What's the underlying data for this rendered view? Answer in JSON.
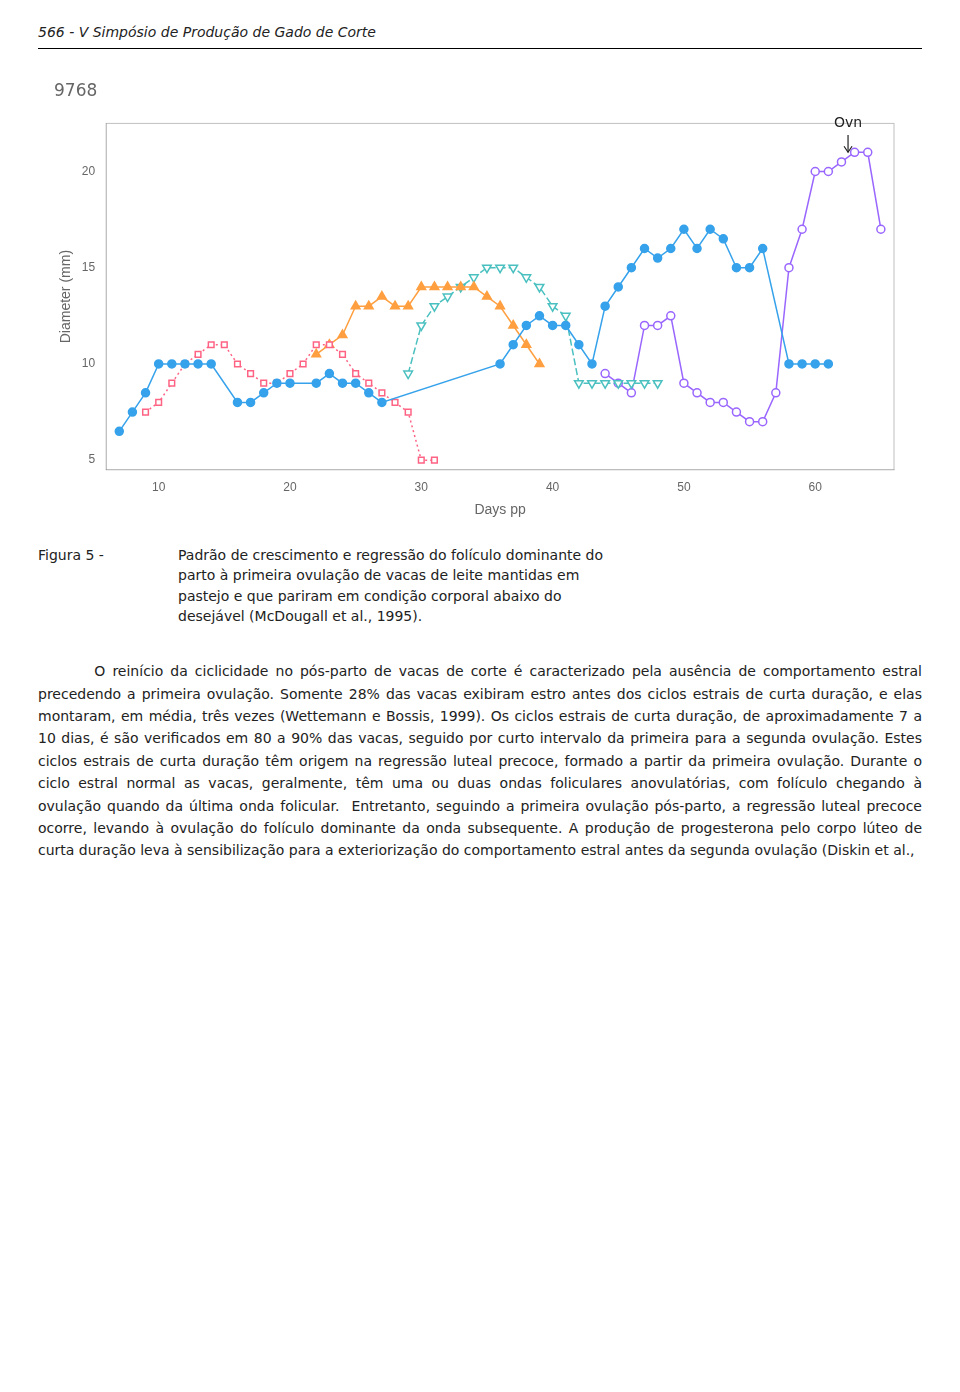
{
  "header": "566 -   V Simpósio de Produção de Gado de Corte",
  "caption_label": "Figura 5 -",
  "caption": "Padrão de crescimento e regressão do folículo dominante do\nparto à primeira ovulação de vacas de leite mantidas em\npastejo e que pariram em condição corporal abaixo do\ndesejável (McDougall et al., 1995).",
  "body": "        O reinício da ciclicidade no pós-parto de vacas de corte é caracterizado pela ausência de comportamento estral precedendo a primeira ovulação. Somente 28% das vacas exibiram estro antes dos ciclos estrais de curta duração, e elas montaram, em média, três vezes (Wettemann e Bossis, 1999). Os ciclos estrais de curta duração, de aproximadamente 7 a 10 dias, é são verificados em 80 a 90% das vacas, seguido por curto intervalo da primeira para a segunda ovulação. Estes ciclos estrais de curta duração têm origem na regressão luteal precoce, formado a partir da primeira ovulação. Durante o ciclo estral normal as vacas, geralmente, têm uma ou duas ondas foliculares anovulatórias, com folículo chegando à ovulação quando da última onda folicular.  Entretanto, seguindo a primeira ovulação pós-parto, a regressão luteal precoce ocorre, levando à ovulação do folículo dominante da onda subsequente. A produção de progesterona pelo corpo lúteo de curta duração leva à sensibilização para a exteriorização do comportamento estral antes da segunda ovulação (Diskin et al.,",
  "chart_data": {
    "type": "line",
    "title": "9768",
    "x_label": "Days pp",
    "y_label": "Diameter (mm)",
    "xlim": [
      6,
      66
    ],
    "ylim": [
      4.5,
      22.5
    ],
    "xticks": [
      10,
      20,
      30,
      40,
      50,
      60
    ],
    "yticks": [
      5,
      10,
      15,
      20
    ],
    "grid": false,
    "series": [
      {
        "marker": "filled-circle",
        "line_style": "solid",
        "x": [
          7,
          8,
          9,
          10,
          11,
          12,
          13,
          14,
          16,
          17,
          18,
          19,
          20,
          22,
          23,
          24,
          25,
          26,
          27,
          36,
          37,
          38,
          39,
          40,
          41,
          42,
          43,
          44,
          45,
          46,
          47,
          48,
          49,
          50,
          51,
          52,
          53,
          54,
          55,
          56,
          58,
          59,
          60,
          61
        ],
        "values": [
          6.5,
          7.5,
          8.5,
          10,
          10,
          10,
          10,
          10,
          8,
          8,
          8.5,
          9,
          9,
          9,
          9.5,
          9,
          9,
          8.5,
          8,
          10,
          11,
          12,
          12.5,
          12,
          12,
          11,
          10,
          13,
          14,
          15,
          16,
          15.5,
          16,
          17,
          16,
          17,
          16.5,
          15,
          15,
          16,
          10,
          10,
          10,
          10
        ]
      },
      {
        "marker": "open-square",
        "line_style": "dotted",
        "x": [
          9,
          10,
          11,
          12,
          13,
          14,
          15,
          16,
          17,
          18,
          19,
          20,
          21,
          22,
          23,
          24,
          25,
          26,
          27,
          28,
          29,
          30,
          31
        ],
        "values": [
          7.5,
          8,
          9,
          10,
          10.5,
          11,
          11,
          10,
          9.5,
          9,
          9,
          9.5,
          10,
          11,
          11,
          10.5,
          9.5,
          9,
          8.5,
          8,
          7.5,
          5,
          5
        ]
      },
      {
        "marker": "filled-triangle",
        "line_style": "solid",
        "x": [
          22,
          23,
          24,
          25,
          26,
          27,
          28,
          29,
          30,
          31,
          32,
          33,
          34,
          35,
          36,
          37,
          38,
          39
        ],
        "values": [
          10.5,
          11,
          11.5,
          13,
          13,
          13.5,
          13,
          13,
          14,
          14,
          14,
          14,
          14,
          13.5,
          13,
          12,
          11,
          10
        ]
      },
      {
        "marker": "open-triangle-down",
        "line_style": "dashed",
        "x": [
          29,
          30,
          31,
          32,
          33,
          34,
          35,
          36,
          37,
          38,
          39,
          40,
          41,
          42,
          43,
          44,
          45,
          46,
          47,
          48
        ],
        "values": [
          9.5,
          12,
          13,
          13.5,
          14,
          14.5,
          15,
          15,
          15,
          14.5,
          14,
          13,
          12.5,
          9,
          9,
          9,
          9,
          9,
          9,
          9
        ]
      },
      {
        "marker": "open-circle",
        "line_style": "solid",
        "x": [
          44,
          45,
          46,
          47,
          48,
          49,
          50,
          51,
          52,
          53,
          54,
          55,
          56,
          57,
          58,
          59,
          60,
          61,
          62,
          63,
          64,
          65
        ],
        "values": [
          9.5,
          9,
          8.5,
          12,
          12,
          12.5,
          9,
          8.5,
          8,
          8,
          7.5,
          7,
          7,
          8.5,
          15,
          17,
          20,
          20,
          20.5,
          21,
          21,
          17
        ]
      }
    ],
    "annotations": [
      {
        "text": "Ovn",
        "x": 62.5,
        "y": 22.0,
        "arrow_to": 21.0
      }
    ]
  }
}
